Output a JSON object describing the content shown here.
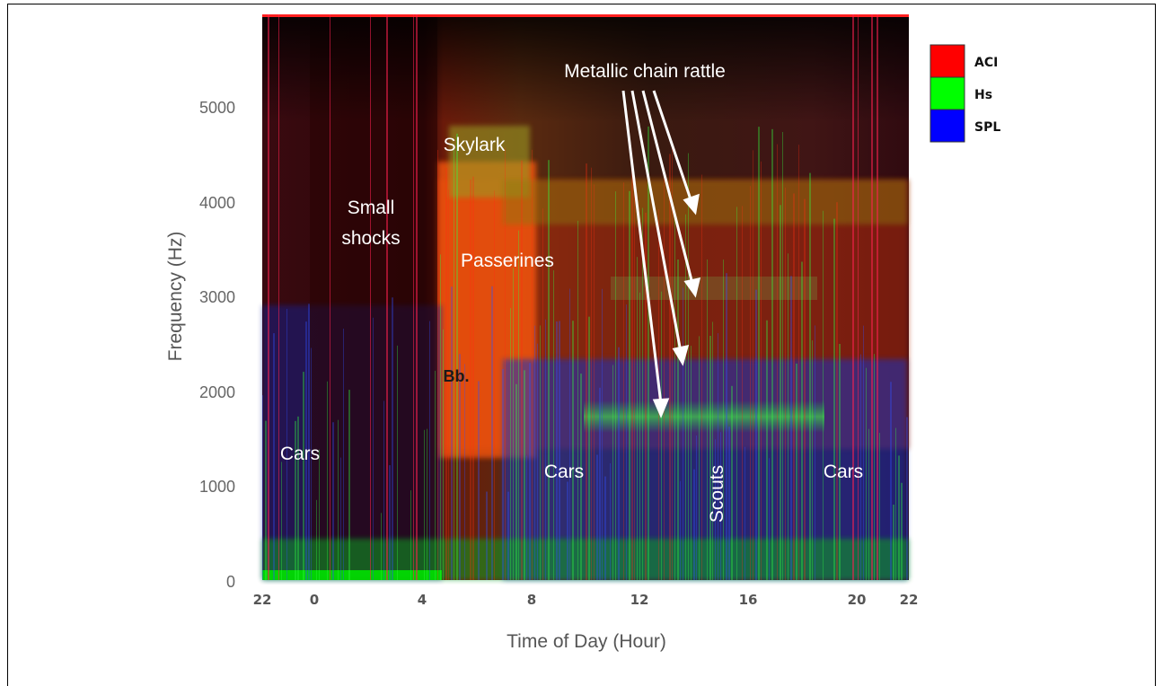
{
  "chart_data": {
    "type": "heatmap",
    "title": "",
    "xlabel": "Time of Day (Hour)",
    "ylabel": "Frequency (Hz)",
    "x_ticks": [
      "22",
      "0",
      "4",
      "8",
      "12",
      "16",
      "20",
      "22"
    ],
    "y_ticks": [
      0,
      1000,
      2000,
      3000,
      4000,
      5000
    ],
    "ylim": [
      0,
      6000
    ],
    "color_channels": [
      {
        "name": "ACI",
        "color": "#ff0000"
      },
      {
        "name": "Hs",
        "color": "#00ff00"
      },
      {
        "name": "SPL",
        "color": "#0000ff"
      }
    ],
    "legend_position": "top-right",
    "annotations": [
      {
        "text": "Metallic chain rattle",
        "time": "13.5h",
        "freq_hz": 5450
      },
      {
        "text": "Skylark",
        "time": "6.3h",
        "freq_hz": 4560
      },
      {
        "text": "Small",
        "time": "1.9h",
        "freq_hz": 3850
      },
      {
        "text": "shocks",
        "time": "1.9h",
        "freq_hz": 3550
      },
      {
        "text": "Passerines",
        "time": "6.9h",
        "freq_hz": 3350
      },
      {
        "text": "Bb.",
        "time": "5.2h",
        "freq_hz": 2100
      },
      {
        "text": "Cars",
        "time": "22.5h",
        "freq_hz": 1300
      },
      {
        "text": "Cars",
        "time": "9.1h",
        "freq_hz": 1100
      },
      {
        "text": "Scouts",
        "time": "14.8h",
        "freq_hz": 1100
      },
      {
        "text": "Cars",
        "time": "19.5h",
        "freq_hz": 1100
      }
    ],
    "arrows": [
      {
        "to_time": "12.8h",
        "to_freq_hz": 1800
      },
      {
        "to_time": "13.8h",
        "to_freq_hz": 2300
      },
      {
        "to_time": "14.1h",
        "to_freq_hz": 3000
      },
      {
        "to_time": "14.2h",
        "to_freq_hz": 3900
      }
    ]
  }
}
